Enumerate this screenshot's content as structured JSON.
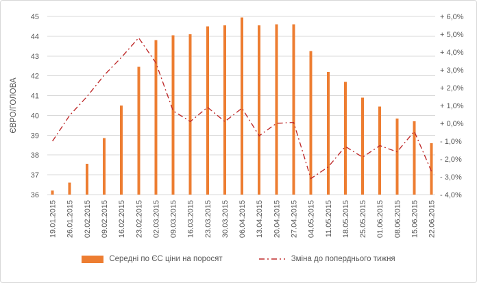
{
  "chart_data": {
    "type": "combo (bar + line)",
    "title": "",
    "x": [
      "19.01.2015",
      "26.01.2015",
      "02.02.2015",
      "09.02.2015",
      "16.02.2015",
      "23.02.2015",
      "02.03.2015",
      "09.03.2015",
      "16.03.2015",
      "23.03.2015",
      "30.03.2015",
      "06.04.2015",
      "13.04.2015",
      "20.04.2015",
      "27.04.2015",
      "04.05.2015",
      "11.05.2015",
      "18.05.2015",
      "25.05.2015",
      "01.06.2015",
      "08.06.2015",
      "15.06.2015",
      "22.06.2015"
    ],
    "series": [
      {
        "name": "Середні по ЄС ціни на поросят",
        "type": "bar",
        "axis": "left",
        "color": "#ED7D31",
        "values": [
          36.2,
          36.6,
          37.55,
          38.85,
          40.5,
          42.45,
          43.8,
          44.05,
          44.1,
          44.5,
          44.55,
          44.95,
          44.55,
          44.6,
          44.6,
          43.25,
          42.2,
          41.7,
          40.9,
          40.45,
          39.85,
          39.7,
          38.6
        ]
      },
      {
        "name": "Зміна до поперднього тижня",
        "type": "line",
        "axis": "right",
        "color": "#BF2C2C",
        "style": "dash-dot",
        "values": [
          -1.0,
          0.45,
          1.5,
          2.7,
          3.7,
          4.8,
          3.4,
          0.7,
          0.1,
          0.9,
          0.1,
          0.85,
          -0.7,
          0.0,
          0.05,
          -3.1,
          -2.45,
          -1.3,
          -1.9,
          -1.25,
          -1.6,
          -0.45,
          -2.7
        ]
      }
    ],
    "left_axis": {
      "title": "ЄВРО/ГОЛОВА",
      "min": 36,
      "max": 45,
      "step": 1,
      "tick_labels": [
        "45",
        "44",
        "43",
        "42",
        "41",
        "40",
        "39",
        "38",
        "37",
        "36"
      ]
    },
    "right_axis": {
      "min": -4,
      "max": 6,
      "step": 1,
      "tick_labels": [
        "+ 6,0%",
        "+ 5,0%",
        "+ 4,0%",
        "+ 3,0%",
        "+ 2,0%",
        "+ 1,0%",
        "+ 0,0%",
        "- 1,0%",
        "- 2,0%",
        "- 3,0%",
        "- 4,0%"
      ]
    },
    "grid": true,
    "legend_position": "bottom",
    "colors": {
      "grid": "#D9D9D9",
      "axis_text": "#595959",
      "background": "#FFFFFF",
      "border": "#D7D7D7"
    }
  }
}
